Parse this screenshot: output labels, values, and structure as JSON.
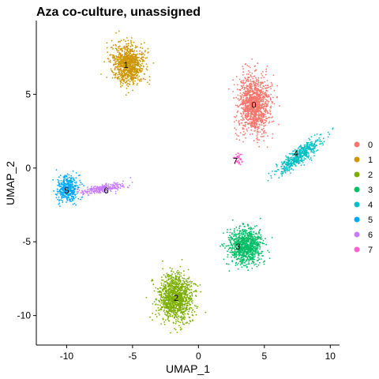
{
  "chart_data": {
    "type": "scatter",
    "title": "Aza co-culture, unassigned",
    "xlabel": "UMAP_1",
    "ylabel": "UMAP_2",
    "xlim": [
      -12.3,
      10.7
    ],
    "ylim": [
      -12.0,
      10.0
    ],
    "x_ticks": [
      -10,
      -5,
      0,
      5,
      10
    ],
    "x_tick_labels": [
      "-10",
      "-5",
      "0",
      "5",
      "10"
    ],
    "y_ticks": [
      -10,
      -5,
      0,
      5
    ],
    "y_tick_labels": [
      "-10",
      "-5",
      "0",
      "5"
    ],
    "grid": false,
    "legend_position": "right",
    "clusters": [
      {
        "name": "0",
        "label": "0",
        "color": "#F8766D",
        "center": [
          4.2,
          4.3
        ],
        "label_pos": [
          4.2,
          4.3
        ],
        "spread": [
          1.1,
          1.8
        ],
        "n": 1200,
        "shape": "blob"
      },
      {
        "name": "1",
        "label": "1",
        "color": "#CD9600",
        "center": [
          -5.3,
          7.0
        ],
        "label_pos": [
          -5.5,
          7.0
        ],
        "spread": [
          1.1,
          1.2
        ],
        "n": 950,
        "shape": "blob"
      },
      {
        "name": "2",
        "label": "2",
        "color": "#7CAE00",
        "center": [
          -1.7,
          -8.8
        ],
        "label_pos": [
          -1.7,
          -8.8
        ],
        "spread": [
          1.2,
          1.4
        ],
        "n": 1100,
        "shape": "blob"
      },
      {
        "name": "3",
        "label": "3",
        "color": "#00BE67",
        "center": [
          3.6,
          -5.3
        ],
        "label_pos": [
          3.0,
          -5.3
        ],
        "spread": [
          1.2,
          1.1
        ],
        "n": 900,
        "shape": "blob"
      },
      {
        "name": "4",
        "label": "4",
        "color": "#00BFC4",
        "center": [
          7.6,
          0.8
        ],
        "label_pos": [
          7.4,
          1.0
        ],
        "spread": [
          1.7,
          0.45
        ],
        "n": 500,
        "shape": "elongated",
        "angle": 35
      },
      {
        "name": "5",
        "label": "5",
        "color": "#00A9FF",
        "center": [
          -9.9,
          -1.4
        ],
        "label_pos": [
          -10.0,
          -1.5
        ],
        "spread": [
          0.7,
          0.85
        ],
        "n": 400,
        "shape": "blob"
      },
      {
        "name": "6",
        "label": "6",
        "color": "#C77CFF",
        "center": [
          -7.2,
          -1.4
        ],
        "label_pos": [
          -7.0,
          -1.5
        ],
        "spread": [
          1.5,
          0.25
        ],
        "n": 250,
        "shape": "elongated",
        "angle": 8
      },
      {
        "name": "7",
        "label": "7",
        "color": "#FF61CC",
        "center": [
          3.0,
          0.6
        ],
        "label_pos": [
          2.8,
          0.5
        ],
        "spread": [
          0.3,
          0.4
        ],
        "n": 40,
        "shape": "blob"
      }
    ]
  }
}
